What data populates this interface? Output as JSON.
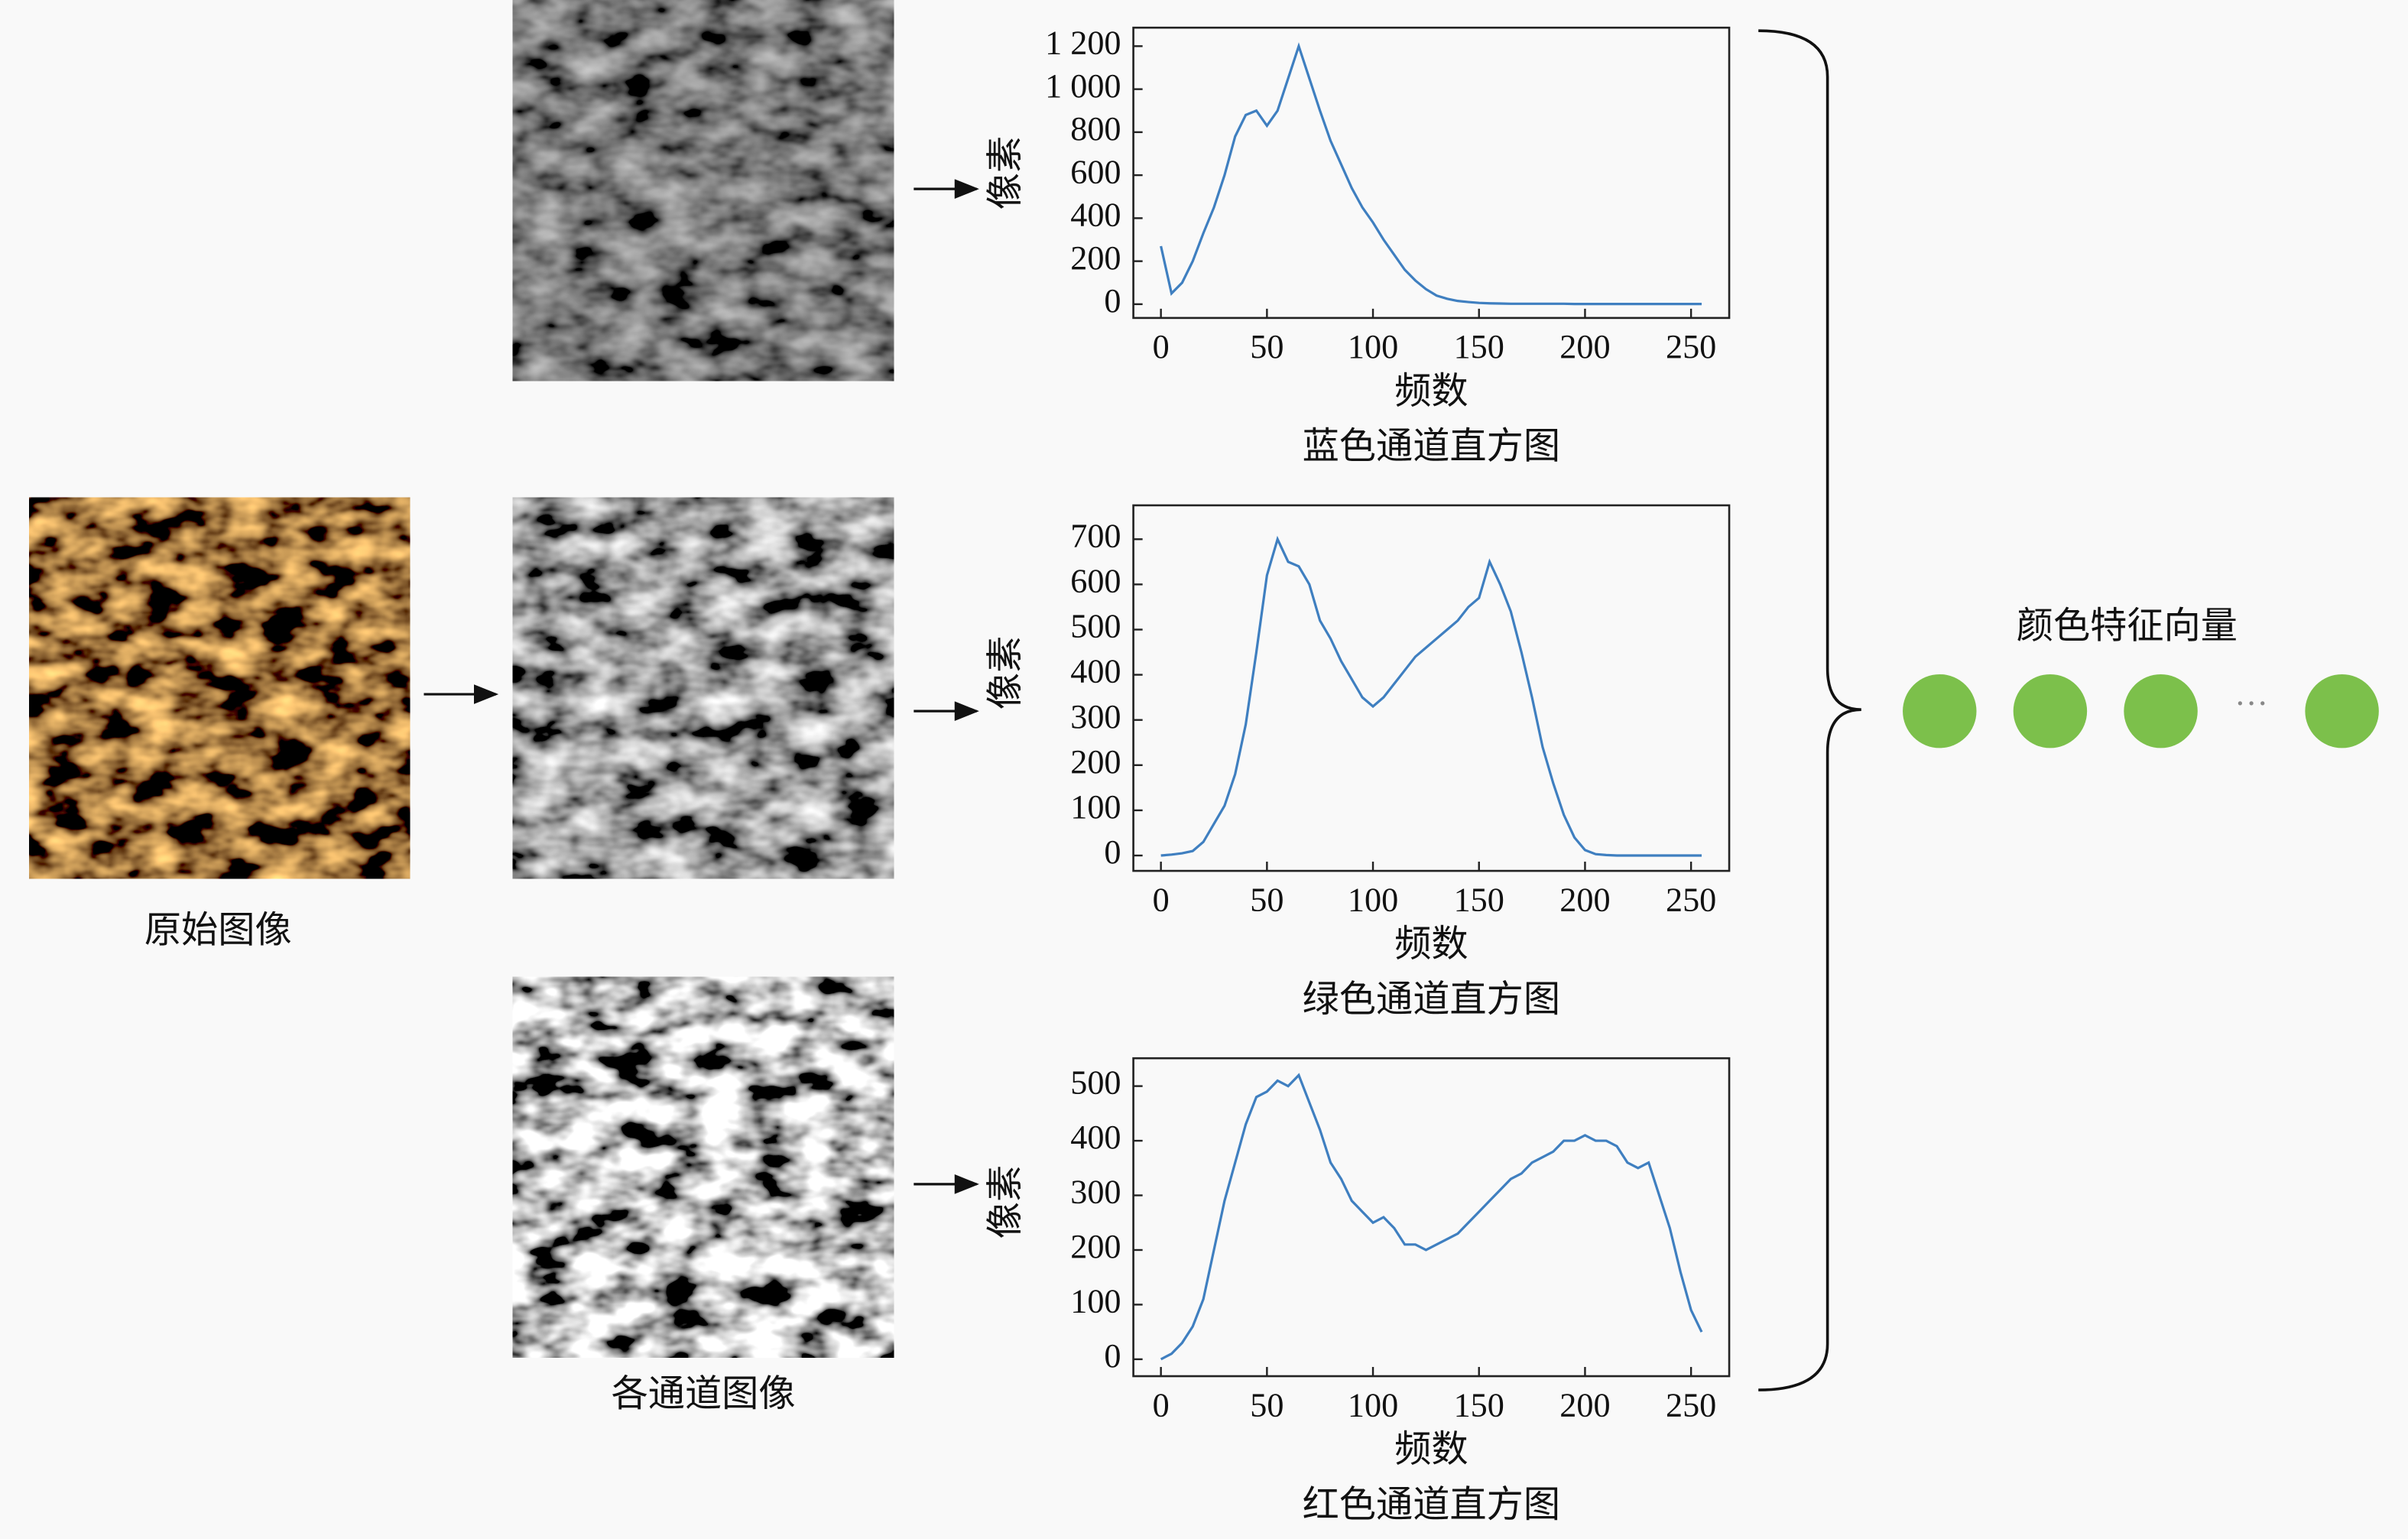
{
  "chart_data": [
    {
      "type": "line",
      "title": "蓝色通道直方图",
      "x_label": "频数",
      "y_label": "像素",
      "color": "#3f7fc0",
      "x": [
        0,
        5,
        10,
        15,
        20,
        25,
        30,
        35,
        40,
        45,
        50,
        55,
        60,
        65,
        70,
        75,
        80,
        85,
        90,
        95,
        100,
        105,
        110,
        115,
        120,
        125,
        130,
        135,
        140,
        145,
        150,
        155,
        160,
        165,
        170,
        175,
        180,
        185,
        190,
        195,
        200,
        205,
        210,
        215,
        220,
        225,
        230,
        235,
        240,
        245,
        250,
        255
      ],
      "values": [
        270,
        50,
        100,
        200,
        330,
        450,
        600,
        780,
        880,
        900,
        830,
        900,
        1050,
        1200,
        1050,
        900,
        760,
        650,
        540,
        450,
        380,
        300,
        230,
        160,
        110,
        70,
        40,
        25,
        15,
        10,
        6,
        4,
        3,
        2,
        2,
        2,
        2,
        2,
        2,
        1,
        1,
        1,
        1,
        1,
        1,
        1,
        1,
        1,
        1,
        1,
        1,
        1
      ],
      "xlim": [
        -13,
        268
      ],
      "xticks": [
        0,
        50,
        100,
        150,
        200,
        250
      ],
      "ylim": [
        -64,
        1286
      ],
      "yticks": [
        0,
        200,
        400,
        600,
        800,
        {
          "value": 1000,
          "label": "1 000"
        },
        {
          "value": 1200,
          "label": "1 200"
        }
      ]
    },
    {
      "type": "line",
      "title": "绿色通道直方图",
      "x_label": "频数",
      "y_label": "像素",
      "color": "#3f7fc0",
      "x": [
        0,
        5,
        10,
        15,
        20,
        25,
        30,
        35,
        40,
        45,
        50,
        55,
        60,
        65,
        70,
        75,
        80,
        85,
        90,
        95,
        100,
        105,
        110,
        115,
        120,
        125,
        130,
        135,
        140,
        145,
        150,
        155,
        160,
        165,
        170,
        175,
        180,
        185,
        190,
        195,
        200,
        205,
        210,
        215,
        220,
        225,
        230,
        235,
        240,
        245,
        250,
        255
      ],
      "values": [
        0,
        2,
        5,
        10,
        30,
        70,
        110,
        180,
        290,
        450,
        620,
        700,
        650,
        640,
        600,
        520,
        480,
        430,
        390,
        350,
        330,
        350,
        380,
        410,
        440,
        460,
        480,
        500,
        520,
        550,
        570,
        650,
        600,
        540,
        450,
        350,
        240,
        160,
        90,
        40,
        12,
        3,
        1,
        0,
        0,
        0,
        0,
        0,
        0,
        0,
        0,
        0
      ],
      "xlim": [
        -13,
        268
      ],
      "xticks": [
        0,
        50,
        100,
        150,
        200,
        250
      ],
      "ylim": [
        -34,
        775
      ],
      "yticks": [
        0,
        100,
        200,
        300,
        400,
        500,
        600,
        700
      ]
    },
    {
      "type": "line",
      "title": "红色通道直方图",
      "x_label": "频数",
      "y_label": "像素",
      "color": "#3f7fc0",
      "x": [
        0,
        5,
        10,
        15,
        20,
        25,
        30,
        35,
        40,
        45,
        50,
        55,
        60,
        65,
        70,
        75,
        80,
        85,
        90,
        95,
        100,
        105,
        110,
        115,
        120,
        125,
        130,
        135,
        140,
        145,
        150,
        155,
        160,
        165,
        170,
        175,
        180,
        185,
        190,
        195,
        200,
        205,
        210,
        215,
        220,
        225,
        230,
        235,
        240,
        245,
        250,
        255
      ],
      "values": [
        0,
        10,
        30,
        60,
        110,
        200,
        290,
        360,
        430,
        480,
        490,
        510,
        500,
        520,
        470,
        420,
        360,
        330,
        290,
        270,
        250,
        260,
        240,
        210,
        210,
        200,
        210,
        220,
        230,
        250,
        270,
        290,
        310,
        330,
        340,
        360,
        370,
        380,
        400,
        400,
        410,
        400,
        400,
        390,
        360,
        350,
        360,
        300,
        240,
        160,
        90,
        50
      ],
      "xlim": [
        -13,
        268
      ],
      "xticks": [
        0,
        50,
        100,
        150,
        200,
        250
      ],
      "ylim": [
        -31,
        551
      ],
      "yticks": [
        0,
        100,
        200,
        300,
        400,
        500
      ]
    }
  ],
  "figure": {
    "original_label": "原始图像",
    "channels_label": "各通道图像",
    "vector_label": "颜色特征向量",
    "ellipsis": "···"
  }
}
